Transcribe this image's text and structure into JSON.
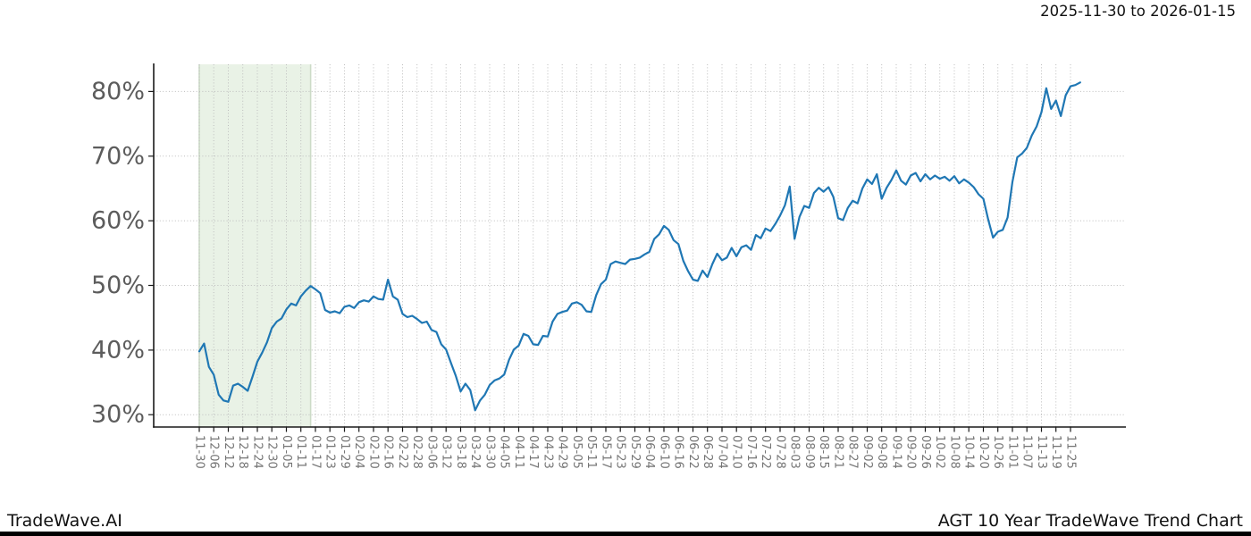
{
  "header": {
    "date_range": "2025-11-30 to 2026-01-15"
  },
  "footer": {
    "brand": "TradeWave.AI",
    "chart_label": "AGT 10 Year TradeWave Trend Chart"
  },
  "chart_data": {
    "type": "line",
    "title": "2025-11-30 to 2026-01-15",
    "xlabel": "",
    "ylabel": "",
    "grid": true,
    "legend_position": "none",
    "ylim": [
      28.1,
      84.2
    ],
    "y_ticks": [
      30,
      40,
      50,
      60,
      70,
      80
    ],
    "y_tick_labels": [
      "30%",
      "40%",
      "50%",
      "60%",
      "70%",
      "80%"
    ],
    "x_tick_interval_days": 6,
    "x_tick_labels": [
      "11-30",
      "12-06",
      "12-12",
      "12-18",
      "12-24",
      "12-30",
      "01-05",
      "01-11",
      "01-17",
      "01-23",
      "01-29",
      "02-04",
      "02-10",
      "02-16",
      "02-22",
      "02-28",
      "03-06",
      "03-12",
      "03-18",
      "03-24",
      "03-30",
      "04-05",
      "04-11",
      "04-17",
      "04-23",
      "04-29",
      "05-05",
      "05-11",
      "05-17",
      "05-23",
      "05-29",
      "06-04",
      "06-10",
      "06-16",
      "06-22",
      "06-28",
      "07-04",
      "07-10",
      "07-16",
      "07-22",
      "07-28",
      "08-03",
      "08-09",
      "08-15",
      "08-21",
      "08-27",
      "09-02",
      "09-08",
      "09-14",
      "09-20",
      "09-26",
      "10-02",
      "10-08",
      "10-14",
      "10-20",
      "10-26",
      "11-01",
      "11-07",
      "11-13",
      "11-19",
      "11-25"
    ],
    "highlight_region": {
      "start_label": "11-30",
      "end_label": "01-15",
      "start_day": 0,
      "end_day": 46,
      "fill": "#e9f2e6",
      "edge": "#ccdbc7"
    },
    "colors": {
      "line": "#1f77b4",
      "grid": "#bdbdbd",
      "axis": "#1a1a1a",
      "y_tick_label": "#5c5c5c",
      "x_tick_label": "#757575"
    },
    "series": [
      {
        "name": "AGT trend (%)",
        "color": "#1f77b4",
        "start_date": "11-30",
        "sample_interval_days": 2,
        "values": [
          39.8,
          41.0,
          37.4,
          36.2,
          33.1,
          32.2,
          32.0,
          34.5,
          34.8,
          34.3,
          33.7,
          35.9,
          38.2,
          39.6,
          41.2,
          43.4,
          44.4,
          44.9,
          46.3,
          47.2,
          46.9,
          48.3,
          49.2,
          49.9,
          49.4,
          48.8,
          46.2,
          45.8,
          46.0,
          45.7,
          46.7,
          46.9,
          46.5,
          47.4,
          47.7,
          47.5,
          48.3,
          47.9,
          47.8,
          50.9,
          48.3,
          47.8,
          45.6,
          45.1,
          45.3,
          44.8,
          44.2,
          44.4,
          43.1,
          42.8,
          40.9,
          40.1,
          38.0,
          36.0,
          33.6,
          34.8,
          33.8,
          30.7,
          32.2,
          33.1,
          34.6,
          35.3,
          35.6,
          36.2,
          38.5,
          40.1,
          40.7,
          42.5,
          42.2,
          40.9,
          40.8,
          42.2,
          42.1,
          44.4,
          45.6,
          45.9,
          46.1,
          47.2,
          47.4,
          47.0,
          46.0,
          45.9,
          48.5,
          50.2,
          50.9,
          53.3,
          53.7,
          53.5,
          53.3,
          54.0,
          54.1,
          54.3,
          54.8,
          55.2,
          57.2,
          57.9,
          59.2,
          58.6,
          57.0,
          56.4,
          53.8,
          52.2,
          50.9,
          50.7,
          52.3,
          51.3,
          53.3,
          54.9,
          53.9,
          54.3,
          55.8,
          54.5,
          55.9,
          56.2,
          55.5,
          57.8,
          57.3,
          58.8,
          58.4,
          59.5,
          60.8,
          62.4,
          65.3,
          57.2,
          60.6,
          62.3,
          62.0,
          64.3,
          65.1,
          64.5,
          65.2,
          63.7,
          60.4,
          60.1,
          62.0,
          63.1,
          62.7,
          65.0,
          66.4,
          65.7,
          67.2,
          63.4,
          65.1,
          66.3,
          67.8,
          66.2,
          65.6,
          67.0,
          67.4,
          66.1,
          67.2,
          66.4,
          67.0,
          66.5,
          66.8,
          66.2,
          66.9,
          65.8,
          66.4,
          65.9,
          65.2,
          64.1,
          63.4,
          60.2,
          57.4,
          58.3,
          58.6,
          60.5,
          66.0,
          69.8,
          70.4,
          71.3,
          73.2,
          74.6,
          76.8,
          80.5,
          77.3,
          78.6,
          76.2,
          79.4,
          80.8,
          81.0,
          81.4
        ]
      }
    ]
  }
}
